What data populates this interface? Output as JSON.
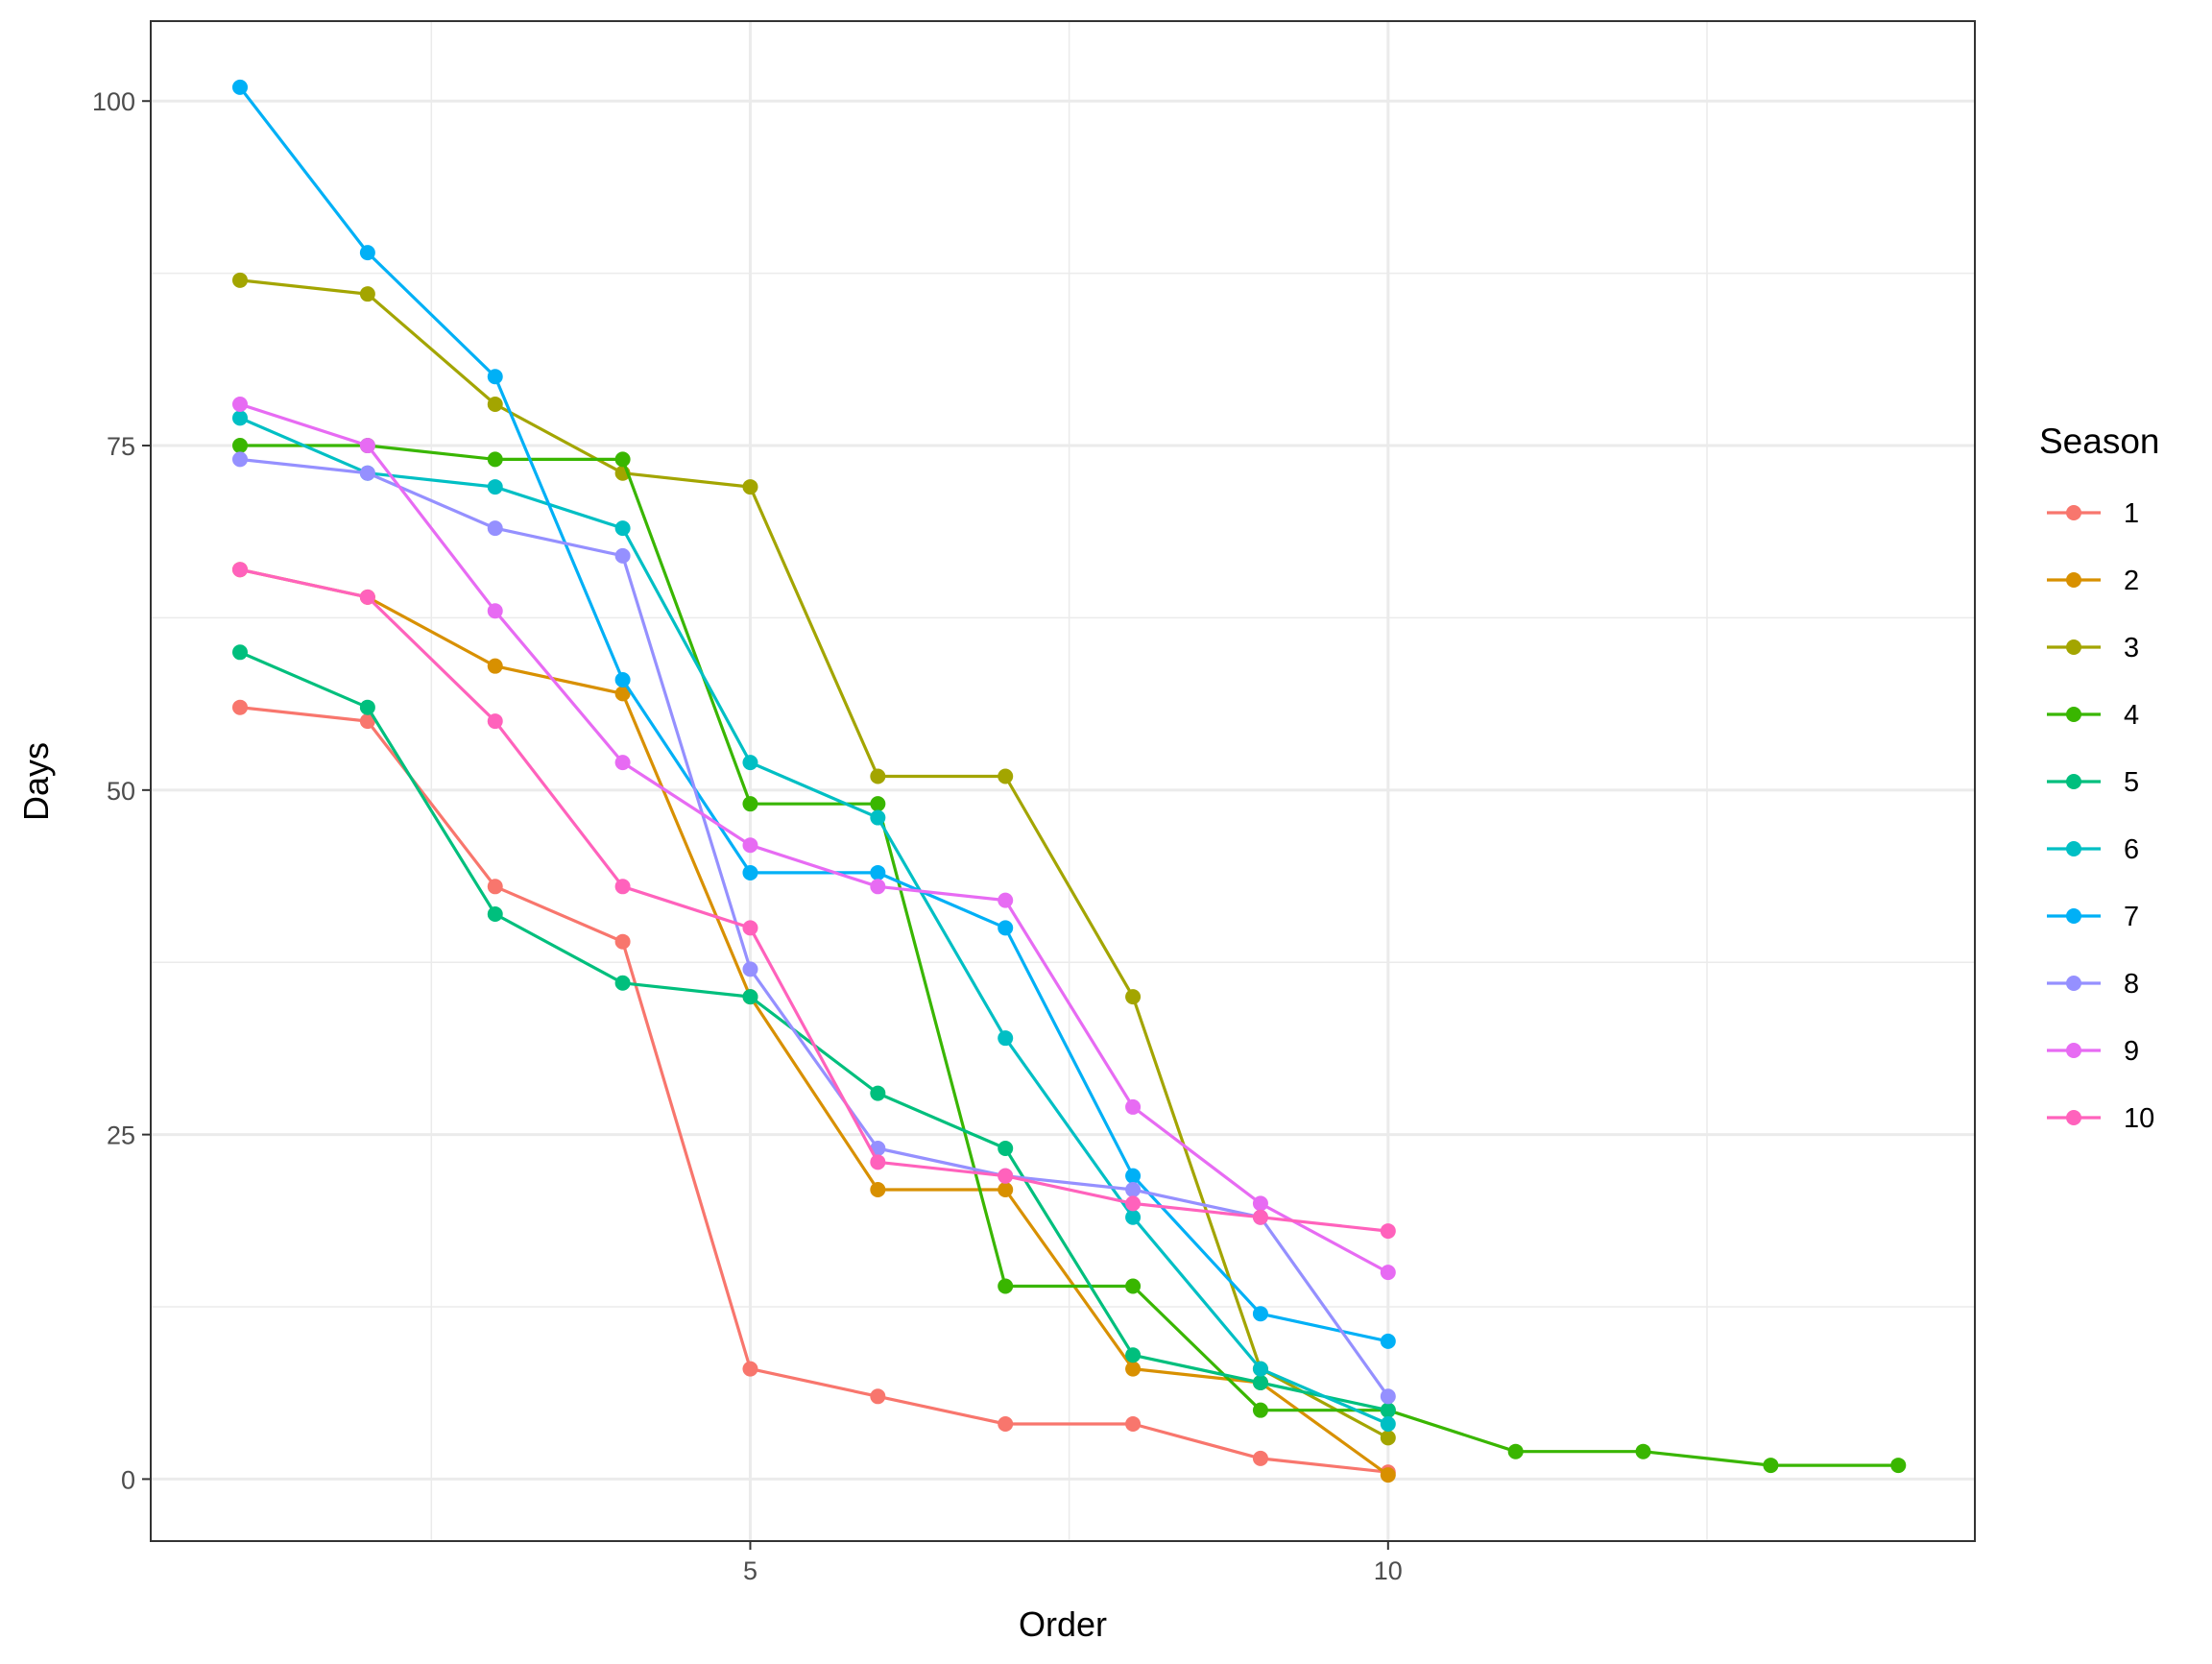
{
  "chart_data": {
    "type": "line",
    "title": "",
    "xlabel": "Order",
    "ylabel": "Days",
    "xlim": [
      0.3,
      14.6
    ],
    "ylim": [
      -4.5,
      105.8
    ],
    "x_ticks": [
      5,
      10
    ],
    "x_tick_labels": [
      "5",
      "10"
    ],
    "x_minor_ticks": [
      2.5,
      7.5,
      12.5
    ],
    "y_ticks": [
      0,
      25,
      50,
      75,
      100
    ],
    "y_tick_labels": [
      "0",
      "25",
      "50",
      "75",
      "100"
    ],
    "y_minor_ticks": [
      12.5,
      37.5,
      62.5,
      87.5
    ],
    "grid": true,
    "legend": {
      "title": "Season",
      "position": "right"
    },
    "series": [
      {
        "name": "1",
        "color": "#F8766D",
        "x": [
          1,
          2,
          3,
          4,
          5,
          6,
          7,
          8,
          9,
          10
        ],
        "values": [
          56,
          55,
          43,
          39,
          8,
          6,
          4,
          4,
          1.5,
          0.5
        ]
      },
      {
        "name": "2",
        "color": "#D89000",
        "x": [
          1,
          2,
          3,
          4,
          5,
          6,
          7,
          8,
          9,
          10
        ],
        "values": [
          66,
          64,
          59,
          57,
          35,
          21,
          21,
          8,
          7,
          0.3
        ]
      },
      {
        "name": "3",
        "color": "#A3A500",
        "x": [
          1,
          2,
          3,
          4,
          5,
          6,
          7,
          8,
          9,
          10
        ],
        "values": [
          87,
          86,
          78,
          73,
          72,
          51,
          51,
          35,
          8,
          3
        ]
      },
      {
        "name": "4",
        "color": "#39B600",
        "x": [
          1,
          2,
          3,
          4,
          5,
          6,
          7,
          8,
          9,
          10,
          11,
          12,
          13,
          14
        ],
        "values": [
          75,
          75,
          74,
          74,
          49,
          49,
          14,
          14,
          5,
          5,
          2,
          2,
          1,
          1
        ]
      },
      {
        "name": "5",
        "color": "#00BF7D",
        "x": [
          1,
          2,
          3,
          4,
          5,
          6,
          7,
          8,
          9,
          10
        ],
        "values": [
          60,
          56,
          41,
          36,
          35,
          28,
          24,
          9,
          7,
          5
        ]
      },
      {
        "name": "6",
        "color": "#00BFC4",
        "x": [
          1,
          2,
          3,
          4,
          5,
          6,
          7,
          8,
          9,
          10
        ],
        "values": [
          77,
          73,
          72,
          69,
          52,
          48,
          32,
          19,
          8,
          4
        ]
      },
      {
        "name": "7",
        "color": "#00B0F6",
        "x": [
          1,
          2,
          3,
          4,
          5,
          6,
          7,
          8,
          9,
          10
        ],
        "values": [
          101,
          89,
          80,
          58,
          44,
          44,
          40,
          22,
          12,
          10
        ]
      },
      {
        "name": "8",
        "color": "#9590FF",
        "x": [
          1,
          2,
          3,
          4,
          5,
          6,
          7,
          8,
          9,
          10
        ],
        "values": [
          74,
          73,
          69,
          67,
          37,
          24,
          22,
          21,
          19,
          6
        ]
      },
      {
        "name": "9",
        "color": "#E76BF3",
        "x": [
          1,
          2,
          3,
          4,
          5,
          6,
          7,
          8,
          9,
          10
        ],
        "values": [
          78,
          75,
          63,
          52,
          46,
          43,
          42,
          27,
          20,
          15
        ]
      },
      {
        "name": "10",
        "color": "#FF62BC",
        "x": [
          1,
          2,
          3,
          4,
          5,
          6,
          7,
          8,
          9,
          10
        ],
        "values": [
          66,
          64,
          55,
          43,
          40,
          23,
          22,
          20,
          19,
          18
        ]
      }
    ]
  }
}
